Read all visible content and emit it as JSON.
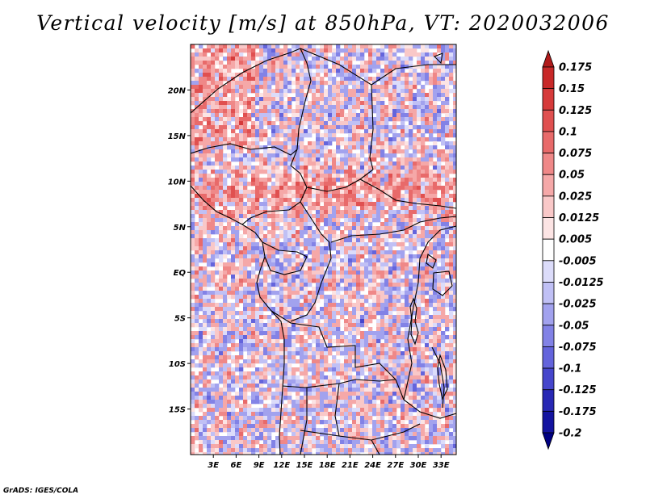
{
  "title": "Vertical velocity [m/s] at 850hPa, VT: 2020032006",
  "footer": "GrADS: IGES/COLA",
  "map": {
    "lon_range": [
      0,
      35
    ],
    "lat_range": [
      -20,
      25
    ],
    "lat_labels": [
      {
        "lat": 20,
        "text": "20N"
      },
      {
        "lat": 15,
        "text": "15N"
      },
      {
        "lat": 10,
        "text": "10N"
      },
      {
        "lat": 5,
        "text": "5N"
      },
      {
        "lat": 0,
        "text": "EQ"
      },
      {
        "lat": -5,
        "text": "5S"
      },
      {
        "lat": -10,
        "text": "10S"
      },
      {
        "lat": -15,
        "text": "15S"
      }
    ],
    "lon_labels": [
      {
        "lon": 3,
        "text": "3E"
      },
      {
        "lon": 6,
        "text": "6E"
      },
      {
        "lon": 9,
        "text": "9E"
      },
      {
        "lon": 12,
        "text": "12E"
      },
      {
        "lon": 15,
        "text": "15E"
      },
      {
        "lon": 18,
        "text": "18E"
      },
      {
        "lon": 21,
        "text": "21E"
      },
      {
        "lon": 24,
        "text": "24E"
      },
      {
        "lon": 27,
        "text": "27E"
      },
      {
        "lon": 30,
        "text": "30E"
      },
      {
        "lon": 33,
        "text": "33E"
      }
    ]
  },
  "colorbar": {
    "levels": [
      "0.175",
      "0.15",
      "0.125",
      "0.1",
      "0.075",
      "0.05",
      "0.025",
      "0.0125",
      "0.005",
      "-0.005",
      "-0.0125",
      "-0.025",
      "-0.05",
      "-0.075",
      "-0.1",
      "-0.125",
      "-0.175",
      "-0.2"
    ],
    "colors": [
      "#b01a1a",
      "#c82828",
      "#d63a3a",
      "#e05050",
      "#e86a6a",
      "#ef8888",
      "#f5a8a8",
      "#f9c8c8",
      "#fce4e4",
      "#ffffff",
      "#dcdcfa",
      "#c0c0f5",
      "#a2a2ee",
      "#8282e6",
      "#6464dc",
      "#4646cc",
      "#2828b4",
      "#1414a0",
      "#000082"
    ]
  }
}
